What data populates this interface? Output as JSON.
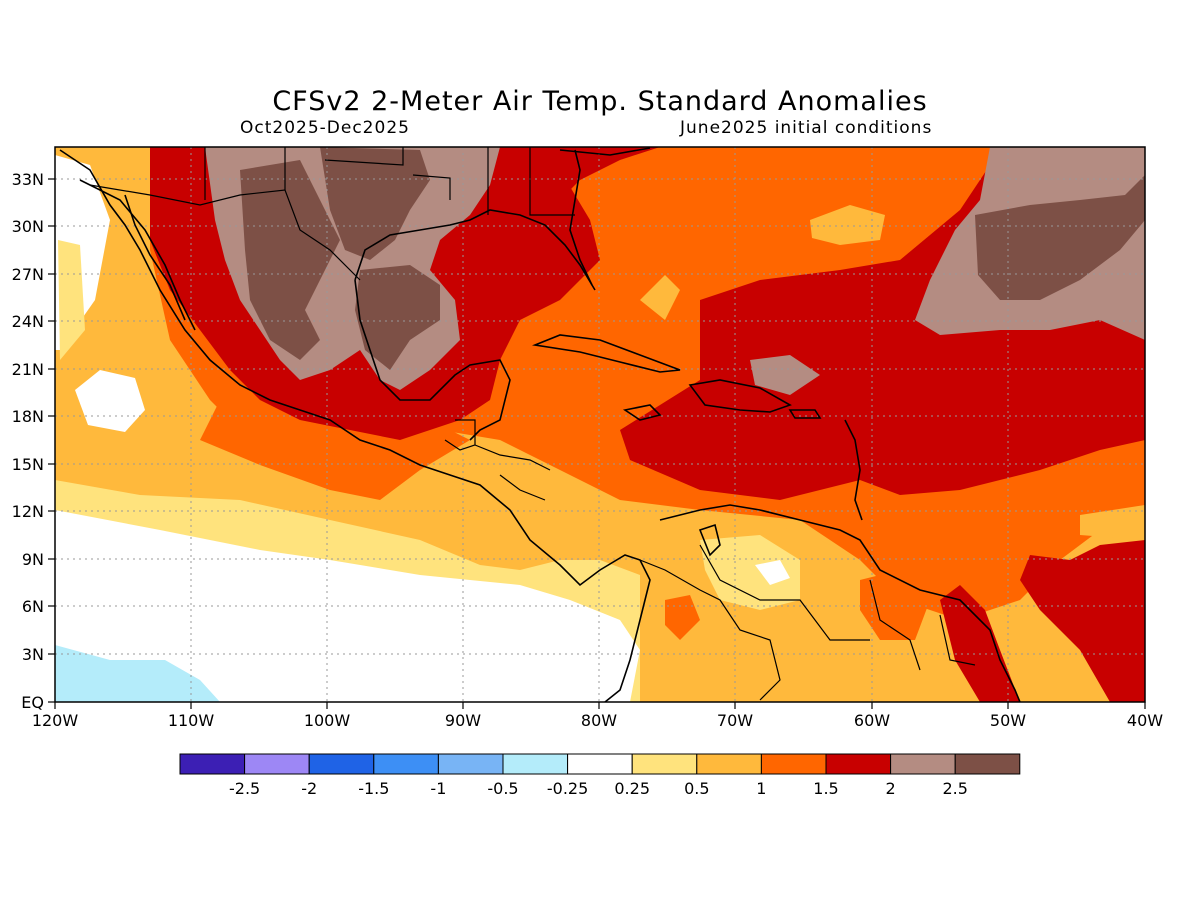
{
  "title": "CFSv2 2-Meter Air Temp. Standard Anomalies",
  "period": "Oct2025-Dec2025",
  "init": "June2025 initial conditions",
  "lat_labels": [
    "33N",
    "30N",
    "27N",
    "24N",
    "21N",
    "18N",
    "15N",
    "12N",
    "9N",
    "6N",
    "3N",
    "EQ"
  ],
  "lon_labels": [
    "120W",
    "110W",
    "100W",
    "90W",
    "80W",
    "70W",
    "60W",
    "50W",
    "40W"
  ],
  "legend": {
    "colors": [
      "#3c1fb4",
      "#9d87f5",
      "#1f63e6",
      "#3d8ff5",
      "#78b4f5",
      "#b4ecfa",
      "#ffffff",
      "#ffe37d",
      "#ffb93c",
      "#ff6600",
      "#c80000",
      "#b48c82",
      "#7d5046"
    ],
    "labels": [
      "-2.5",
      "-2",
      "-1.5",
      "-1",
      "-0.5",
      "-0.25",
      "0.25",
      "0.5",
      "1",
      "1.5",
      "2",
      "2.5"
    ]
  },
  "colors": {
    "near_zero": "#ffffff",
    "weak_pos": "#ffe37d",
    "mod_pos": "#ffb93c",
    "pos_1_5": "#ff6600",
    "pos_2": "#c80000",
    "pos_2_5": "#b48c82",
    "pos_high": "#7d5046",
    "neg_weak": "#b4ecfa"
  }
}
